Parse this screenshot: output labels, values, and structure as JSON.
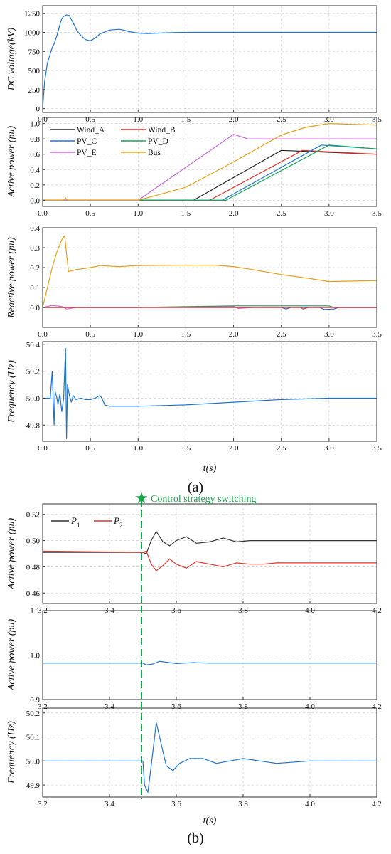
{
  "figure": {
    "panel_labels": [
      "(a)",
      "(b)"
    ],
    "annotation": "Control strategy switching",
    "xlabel_a": "t(s)",
    "xlabel_b": "t(s)"
  },
  "colors": {
    "wind_a": "#222222",
    "wind_b": "#e8312b",
    "pv_c": "#1e73d2",
    "pv_d": "#16a45a",
    "pv_e": "#cc66dd",
    "bus": "#e6a017",
    "blue": "#1e73d2",
    "p1": "#333333",
    "p2": "#e8312b",
    "switch_line": "#1aa54a"
  },
  "chart_data": [
    {
      "id": "a1",
      "type": "line",
      "ylabel": "DC voltage(kV)",
      "xlim": [
        0,
        3.5
      ],
      "ylim": [
        -50,
        1350
      ],
      "xticks": [
        0.0,
        0.5,
        1.0,
        1.5,
        2.0,
        2.5,
        3.0,
        3.5
      ],
      "xticklabels": [
        "0.0",
        "0.5",
        "1.0",
        "1.5",
        "2.0",
        "2.5",
        "3.0",
        "3.5"
      ],
      "yticks": [
        0,
        250,
        500,
        750,
        1000,
        1250
      ],
      "yticklabels": [
        "0",
        "250",
        "500",
        "750",
        "1000",
        "1250"
      ],
      "grid": true,
      "series": [
        {
          "color_key": "blue",
          "x": [
            0,
            0.02,
            0.05,
            0.08,
            0.1,
            0.12,
            0.15,
            0.18,
            0.2,
            0.22,
            0.25,
            0.28,
            0.3,
            0.33,
            0.36,
            0.4,
            0.45,
            0.5,
            0.55,
            0.6,
            0.7,
            0.8,
            0.85,
            0.9,
            1.0,
            1.1,
            1.2,
            1.4,
            1.6,
            2.0,
            2.5,
            3.0,
            3.5
          ],
          "y": [
            0,
            350,
            600,
            720,
            800,
            850,
            960,
            1100,
            1180,
            1210,
            1230,
            1220,
            1170,
            1100,
            1020,
            960,
            905,
            890,
            925,
            980,
            1030,
            1040,
            1030,
            1010,
            990,
            985,
            990,
            998,
            1000,
            1000,
            1000,
            1000,
            1000
          ]
        }
      ]
    },
    {
      "id": "a2",
      "type": "line",
      "ylabel": "Active power (pu)",
      "xlim": [
        0,
        3.5
      ],
      "ylim": [
        -0.08,
        1.08
      ],
      "xticks": [
        0.0,
        0.5,
        1.0,
        1.5,
        2.0,
        2.5,
        3.0,
        3.5
      ],
      "xticklabels": [
        "0.0",
        "0.5",
        "1.0",
        "1.5",
        "2.0",
        "2.5",
        "3.0",
        "3.5"
      ],
      "yticks": [
        0.0,
        0.2,
        0.4,
        0.6,
        0.8,
        1.0
      ],
      "yticklabels": [
        "0.0",
        "0.2",
        "0.4",
        "0.6",
        "0.8",
        "1.0"
      ],
      "grid": true,
      "legend_position": "top-left",
      "series": [
        {
          "name": "Wind_A",
          "color_key": "wind_a",
          "x": [
            0,
            1.58,
            2.5,
            3.5
          ],
          "y": [
            0,
            0,
            0.65,
            0.6
          ]
        },
        {
          "name": "Wind_B",
          "color_key": "wind_b",
          "x": [
            0,
            1.75,
            2.72,
            3.5
          ],
          "y": [
            0,
            0,
            0.65,
            0.6
          ]
        },
        {
          "name": "PV_C",
          "color_key": "pv_c",
          "x": [
            0,
            1.88,
            2.92,
            3.5
          ],
          "y": [
            0,
            0,
            0.72,
            0.67
          ]
        },
        {
          "name": "PV_D",
          "color_key": "pv_d",
          "x": [
            0,
            1.92,
            3.0,
            3.5
          ],
          "y": [
            0,
            0,
            0.72,
            0.67
          ]
        },
        {
          "name": "PV_E",
          "color_key": "pv_e",
          "x": [
            0,
            1.0,
            2.0,
            2.15,
            3.5
          ],
          "y": [
            0,
            0,
            0.86,
            0.8,
            0.8
          ]
        },
        {
          "name": "Bus",
          "color_key": "bus",
          "x": [
            0,
            0.22,
            0.24,
            0.26,
            1.0,
            1.5,
            2.0,
            2.5,
            2.75,
            3.0,
            3.5
          ],
          "y": [
            0,
            0,
            0.03,
            0,
            0,
            0.17,
            0.5,
            0.85,
            0.95,
            1.0,
            0.98
          ]
        }
      ]
    },
    {
      "id": "a3",
      "type": "line",
      "ylabel": "Reactive power (pu)",
      "xlim": [
        0,
        3.5
      ],
      "ylim": [
        -0.1,
        0.4
      ],
      "xticks": [
        0.0,
        0.5,
        1.0,
        1.5,
        2.0,
        2.5,
        3.0,
        3.5
      ],
      "xticklabels": [
        "0.0",
        "0.5",
        "1.0",
        "1.5",
        "2.0",
        "2.5",
        "3.0",
        "3.5"
      ],
      "yticks": [
        0.0,
        0.1,
        0.2,
        0.3,
        0.4
      ],
      "yticklabels": [
        "0.0",
        "0.1",
        "0.2",
        "0.3",
        "0.4"
      ],
      "grid": true,
      "series": [
        {
          "color_key": "bus",
          "x": [
            0,
            0.05,
            0.1,
            0.15,
            0.2,
            0.23,
            0.27,
            0.35,
            0.5,
            0.6,
            0.8,
            1.0,
            1.5,
            1.8,
            2.0,
            2.2,
            2.5,
            2.8,
            3.0,
            3.5
          ],
          "y": [
            0,
            0.1,
            0.2,
            0.28,
            0.34,
            0.36,
            0.18,
            0.19,
            0.2,
            0.21,
            0.205,
            0.21,
            0.212,
            0.212,
            0.205,
            0.19,
            0.165,
            0.145,
            0.13,
            0.135
          ]
        },
        {
          "color_key": "pv_e",
          "x": [
            0,
            0.1,
            0.2,
            0.25,
            0.35,
            1.0,
            2.0,
            2.05,
            2.2,
            3.5
          ],
          "y": [
            0,
            0.01,
            0.005,
            -0.008,
            0,
            0,
            0.005,
            -0.005,
            0,
            0
          ]
        },
        {
          "color_key": "pv_d",
          "x": [
            0,
            1.0,
            2.0,
            3.0,
            3.05,
            3.5
          ],
          "y": [
            0,
            0,
            0.008,
            0.008,
            0,
            0
          ]
        },
        {
          "color_key": "blue",
          "x": [
            0,
            2.5,
            2.55,
            2.6,
            2.9,
            2.95,
            3.05,
            3.1,
            3.5
          ],
          "y": [
            0,
            0,
            -0.008,
            0,
            0,
            -0.01,
            -0.008,
            0,
            0
          ]
        },
        {
          "color_key": "wind_b",
          "x": [
            0,
            2.7,
            2.73,
            2.78,
            3.5
          ],
          "y": [
            0,
            0,
            -0.008,
            0,
            0
          ]
        }
      ]
    },
    {
      "id": "a4",
      "type": "line",
      "ylabel": "Frequency (Hz)",
      "xlim": [
        0,
        3.5
      ],
      "ylim": [
        49.68,
        50.42
      ],
      "xticks": [
        0.0,
        0.5,
        1.0,
        1.5,
        2.0,
        2.5,
        3.0,
        3.5
      ],
      "xticklabels": [
        "0.0",
        "0.5",
        "1.0",
        "1.5",
        "2.0",
        "2.5",
        "3.0",
        "3.5"
      ],
      "yticks": [
        49.8,
        50.0,
        50.2,
        50.4
      ],
      "yticklabels": [
        "49.8",
        "50.0",
        "50.2",
        "50.4"
      ],
      "grid": true,
      "series": [
        {
          "color_key": "blue",
          "x": [
            0,
            0.08,
            0.1,
            0.12,
            0.13,
            0.15,
            0.16,
            0.18,
            0.2,
            0.22,
            0.24,
            0.25,
            0.26,
            0.28,
            0.3,
            0.32,
            0.35,
            0.4,
            0.45,
            0.5,
            0.55,
            0.6,
            0.62,
            0.65,
            0.7,
            1.0,
            1.5,
            2.0,
            2.5,
            3.0,
            3.5
          ],
          "y": [
            50.0,
            50.0,
            50.2,
            49.8,
            50.05,
            50.0,
            49.95,
            50.03,
            49.9,
            50.0,
            50.37,
            49.7,
            50.1,
            50.02,
            49.97,
            50.02,
            49.99,
            50.0,
            49.99,
            49.99,
            50.0,
            50.02,
            50.0,
            49.95,
            49.94,
            49.94,
            49.95,
            49.97,
            49.99,
            50.0,
            50.0
          ]
        }
      ]
    },
    {
      "id": "b1",
      "type": "line",
      "ylabel": "Active power (pu)",
      "xlim": [
        3.2,
        4.2
      ],
      "ylim": [
        0.452,
        0.528
      ],
      "xticks": [
        3.2,
        3.4,
        3.6,
        3.8,
        4.0,
        4.2
      ],
      "xticklabels": [
        "3.2",
        "3.4",
        "3.6",
        "3.8",
        "4.0",
        "4.2"
      ],
      "yticks": [
        0.46,
        0.48,
        0.5,
        0.52
      ],
      "yticklabels": [
        "0.46",
        "0.48",
        "0.50",
        "0.52"
      ],
      "grid": true,
      "legend_position": "top-left",
      "series": [
        {
          "name": "P1",
          "color_key": "p1",
          "x": [
            3.2,
            3.5,
            3.51,
            3.525,
            3.54,
            3.56,
            3.58,
            3.6,
            3.63,
            3.66,
            3.7,
            3.74,
            3.78,
            3.82,
            3.86,
            3.9,
            4.0,
            4.2
          ],
          "y": [
            0.491,
            0.491,
            0.49,
            0.5,
            0.507,
            0.499,
            0.496,
            0.5,
            0.503,
            0.498,
            0.499,
            0.502,
            0.499,
            0.5,
            0.5,
            0.5,
            0.5,
            0.5
          ]
        },
        {
          "name": "P2",
          "color_key": "p2",
          "x": [
            3.2,
            3.5,
            3.51,
            3.525,
            3.54,
            3.56,
            3.58,
            3.6,
            3.63,
            3.66,
            3.7,
            3.74,
            3.78,
            3.82,
            3.86,
            3.9,
            4.0,
            4.2
          ],
          "y": [
            0.492,
            0.491,
            0.492,
            0.482,
            0.477,
            0.481,
            0.486,
            0.482,
            0.479,
            0.484,
            0.482,
            0.48,
            0.483,
            0.482,
            0.482,
            0.483,
            0.483,
            0.483
          ]
        }
      ]
    },
    {
      "id": "b2",
      "type": "line",
      "ylabel": "Active power (pu)",
      "xlim": [
        3.2,
        4.2
      ],
      "ylim": [
        0.9,
        1.1
      ],
      "xticks": [
        3.2,
        3.4,
        3.6,
        3.8,
        4.0,
        4.2
      ],
      "xticklabels": [
        "3.2",
        "3.4",
        "3.6",
        "3.8",
        "4.0",
        "4.2"
      ],
      "yticks": [
        0.9,
        1.0,
        1.1
      ],
      "yticklabels": [
        "0.9",
        "1.0",
        "1.1"
      ],
      "grid": true,
      "series": [
        {
          "color_key": "blue",
          "x": [
            3.2,
            3.5,
            3.51,
            3.53,
            3.55,
            3.57,
            3.6,
            3.65,
            3.7,
            3.8,
            4.2
          ],
          "y": [
            0.982,
            0.982,
            0.978,
            0.98,
            0.986,
            0.984,
            0.981,
            0.983,
            0.982,
            0.982,
            0.982
          ]
        }
      ]
    },
    {
      "id": "b3",
      "type": "line",
      "ylabel": "Frequency (Hz)",
      "xlim": [
        3.2,
        4.2
      ],
      "ylim": [
        49.85,
        50.22
      ],
      "xticks": [
        3.2,
        3.4,
        3.6,
        3.8,
        4.0,
        4.2
      ],
      "xticklabels": [
        "3.2",
        "3.4",
        "3.6",
        "3.8",
        "4.0",
        "4.2"
      ],
      "yticks": [
        49.9,
        50.0,
        50.1,
        50.2
      ],
      "yticklabels": [
        "49.9",
        "50.0",
        "50.1",
        "50.2"
      ],
      "grid": true,
      "series": [
        {
          "color_key": "blue",
          "x": [
            3.2,
            3.5,
            3.505,
            3.515,
            3.525,
            3.54,
            3.555,
            3.57,
            3.59,
            3.61,
            3.64,
            3.68,
            3.72,
            3.76,
            3.8,
            3.85,
            3.9,
            4.0,
            4.2
          ],
          "y": [
            50.0,
            50.0,
            49.9,
            49.87,
            49.98,
            50.16,
            50.07,
            49.98,
            49.96,
            49.99,
            50.01,
            50.01,
            49.99,
            50.0,
            50.01,
            50.0,
            49.99,
            50.0,
            50.0
          ]
        }
      ]
    }
  ]
}
